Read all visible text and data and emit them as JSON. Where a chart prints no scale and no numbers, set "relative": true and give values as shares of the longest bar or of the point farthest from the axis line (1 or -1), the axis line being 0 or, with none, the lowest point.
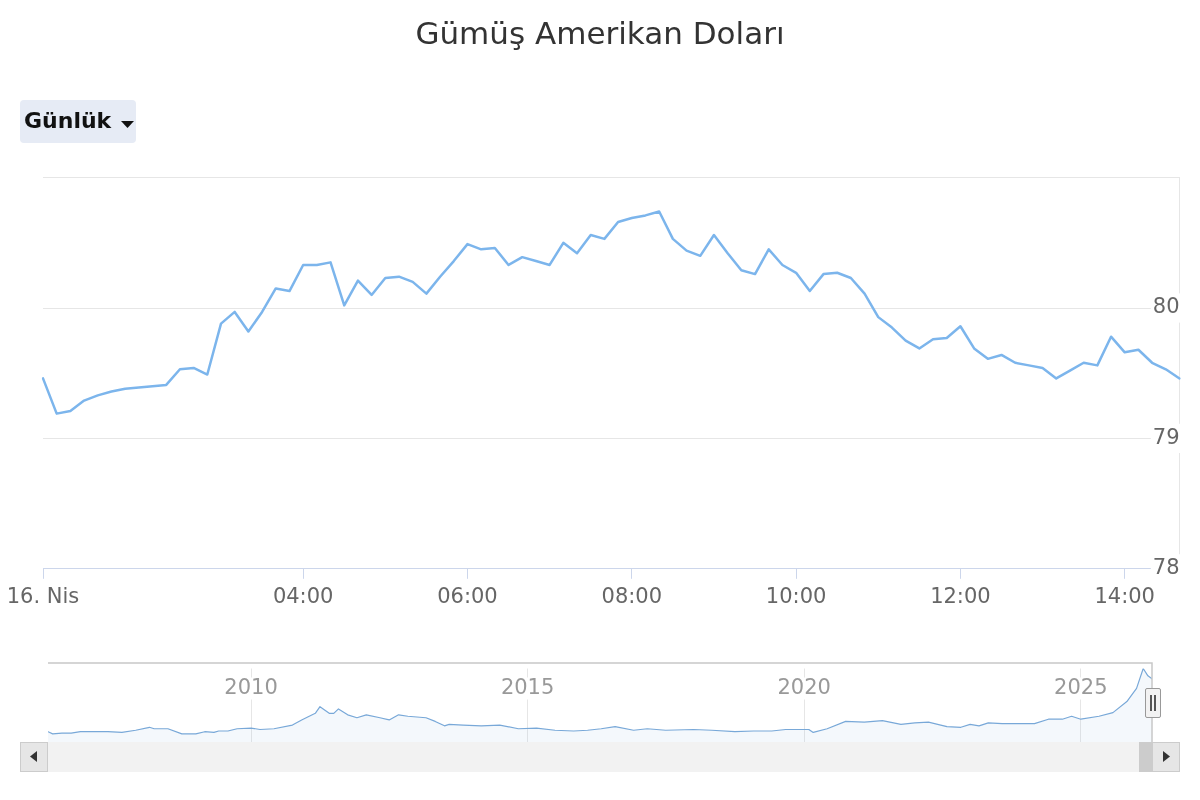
{
  "chart_data": [
    {
      "type": "line",
      "title": "Gümüş Amerikan Doları",
      "annotations": [
        "Günlük"
      ],
      "categories": [
        "16. Nis",
        null,
        null,
        null,
        null,
        null,
        null,
        null,
        null,
        null,
        null,
        null,
        null,
        null,
        null,
        null,
        null,
        null,
        null,
        "04:00",
        null,
        null,
        null,
        null,
        null,
        null,
        null,
        null,
        null,
        null,
        null,
        "06:00",
        null,
        null,
        null,
        null,
        null,
        null,
        null,
        null,
        null,
        null,
        null,
        "08:00",
        null,
        null,
        null,
        null,
        null,
        null,
        null,
        null,
        null,
        null,
        null,
        "10:00",
        null,
        null,
        null,
        null,
        null,
        null,
        null,
        null,
        null,
        null,
        null,
        "12:00",
        null,
        null,
        null,
        null,
        null,
        null,
        null,
        null,
        null,
        null,
        null,
        "14:00",
        null,
        null,
        null,
        null
      ],
      "values": [
        79.46,
        79.19,
        79.21,
        79.29,
        79.33,
        79.36,
        79.38,
        79.39,
        79.4,
        79.41,
        79.53,
        79.54,
        79.49,
        79.88,
        79.97,
        79.82,
        79.97,
        80.15,
        80.13,
        80.33,
        80.33,
        80.35,
        80.02,
        80.21,
        80.1,
        80.23,
        80.24,
        80.2,
        80.11,
        80.24,
        80.36,
        80.49,
        80.45,
        80.46,
        80.33,
        80.39,
        80.36,
        80.33,
        80.5,
        80.42,
        80.56,
        80.53,
        80.66,
        80.69,
        80.71,
        80.74,
        80.53,
        80.44,
        80.4,
        80.56,
        80.42,
        80.29,
        80.26,
        80.45,
        80.33,
        80.27,
        80.13,
        80.26,
        80.27,
        80.23,
        80.11,
        79.93,
        79.85,
        79.75,
        79.69,
        79.76,
        79.77,
        79.86,
        79.69,
        79.61,
        79.64,
        79.58,
        79.56,
        79.54,
        79.46,
        79.52,
        79.58,
        79.56,
        79.78,
        79.66,
        79.68,
        79.58,
        79.53,
        79.46
      ],
      "color": "#7cb5ec",
      "ylim": [
        78,
        81
      ],
      "yticks": [
        78,
        79,
        80,
        {
          "value": 81,
          "label": null
        }
      ],
      "grid": "y"
    },
    {
      "type": "area",
      "relative": true,
      "tick_labels": "x",
      "color": "#78a8d8",
      "x": [
        "2006-05",
        "2006-06",
        "2006-08",
        "2006-10",
        "2006-12",
        "2007-03",
        "2007-06",
        "2007-09",
        "2007-12",
        "2008-03",
        "2008-04",
        "2008-07",
        "2008-10",
        "2009-01",
        "2009-03",
        "2009-05",
        "2009-06",
        "2009-08",
        "2009-10",
        "2010-01",
        "2010-03",
        "2010-06",
        "2010-10",
        "2010-12",
        "2011-03",
        "2011-04",
        "2011-06",
        "2011-07",
        "2011-08",
        "2011-10",
        "2011-12",
        "2012-02",
        "2012-05",
        "2012-07",
        "2012-09",
        "2012-11",
        "2013-03",
        "2013-05",
        "2013-07",
        "2013-08",
        "2013-11",
        "2014-03",
        "2014-07",
        "2014-11",
        "2015-03",
        "2015-07",
        "2015-11",
        "2016-02",
        "2016-05",
        "2016-08",
        "2016-12",
        "2017-03",
        "2017-07",
        "2018-01",
        "2018-05",
        "2018-10",
        "2019-02",
        "2019-06",
        "2019-09",
        "2020-02",
        "2020-03",
        "2020-06",
        "2020-10",
        "2021-02",
        "2021-06",
        "2021-10",
        "2022-01",
        "2022-04",
        "2022-08",
        "2022-11",
        "2023-01",
        "2023-03",
        "2023-05",
        "2023-08",
        "2023-12",
        "2024-03",
        "2024-06",
        "2024-09",
        "2024-11",
        "2025-01",
        "2025-05",
        "2025-08",
        "2025-11",
        "2026-01-04",
        "2026-02-17",
        "2026-03-20",
        "2026-04-16"
      ],
      "values": [
        0.14,
        0.11,
        0.12,
        0.12,
        0.14,
        0.14,
        0.14,
        0.13,
        0.16,
        0.2,
        0.18,
        0.18,
        0.11,
        0.11,
        0.14,
        0.13,
        0.15,
        0.15,
        0.18,
        0.19,
        0.17,
        0.18,
        0.23,
        0.3,
        0.39,
        0.48,
        0.39,
        0.39,
        0.45,
        0.37,
        0.33,
        0.37,
        0.33,
        0.3,
        0.37,
        0.35,
        0.33,
        0.28,
        0.22,
        0.24,
        0.23,
        0.22,
        0.23,
        0.18,
        0.19,
        0.16,
        0.15,
        0.16,
        0.18,
        0.21,
        0.16,
        0.18,
        0.16,
        0.17,
        0.16,
        0.14,
        0.15,
        0.15,
        0.17,
        0.17,
        0.13,
        0.18,
        0.28,
        0.27,
        0.29,
        0.24,
        0.26,
        0.27,
        0.21,
        0.2,
        0.24,
        0.22,
        0.26,
        0.25,
        0.25,
        0.25,
        0.31,
        0.31,
        0.35,
        0.31,
        0.35,
        0.4,
        0.55,
        0.73,
        1,
        0.9,
        0.86
      ],
      "xlim": [
        "2006-05",
        "2026-04-16"
      ],
      "xticks": [
        "2010",
        "2015",
        "2020",
        "2025"
      ],
      "grid": "x"
    }
  ]
}
